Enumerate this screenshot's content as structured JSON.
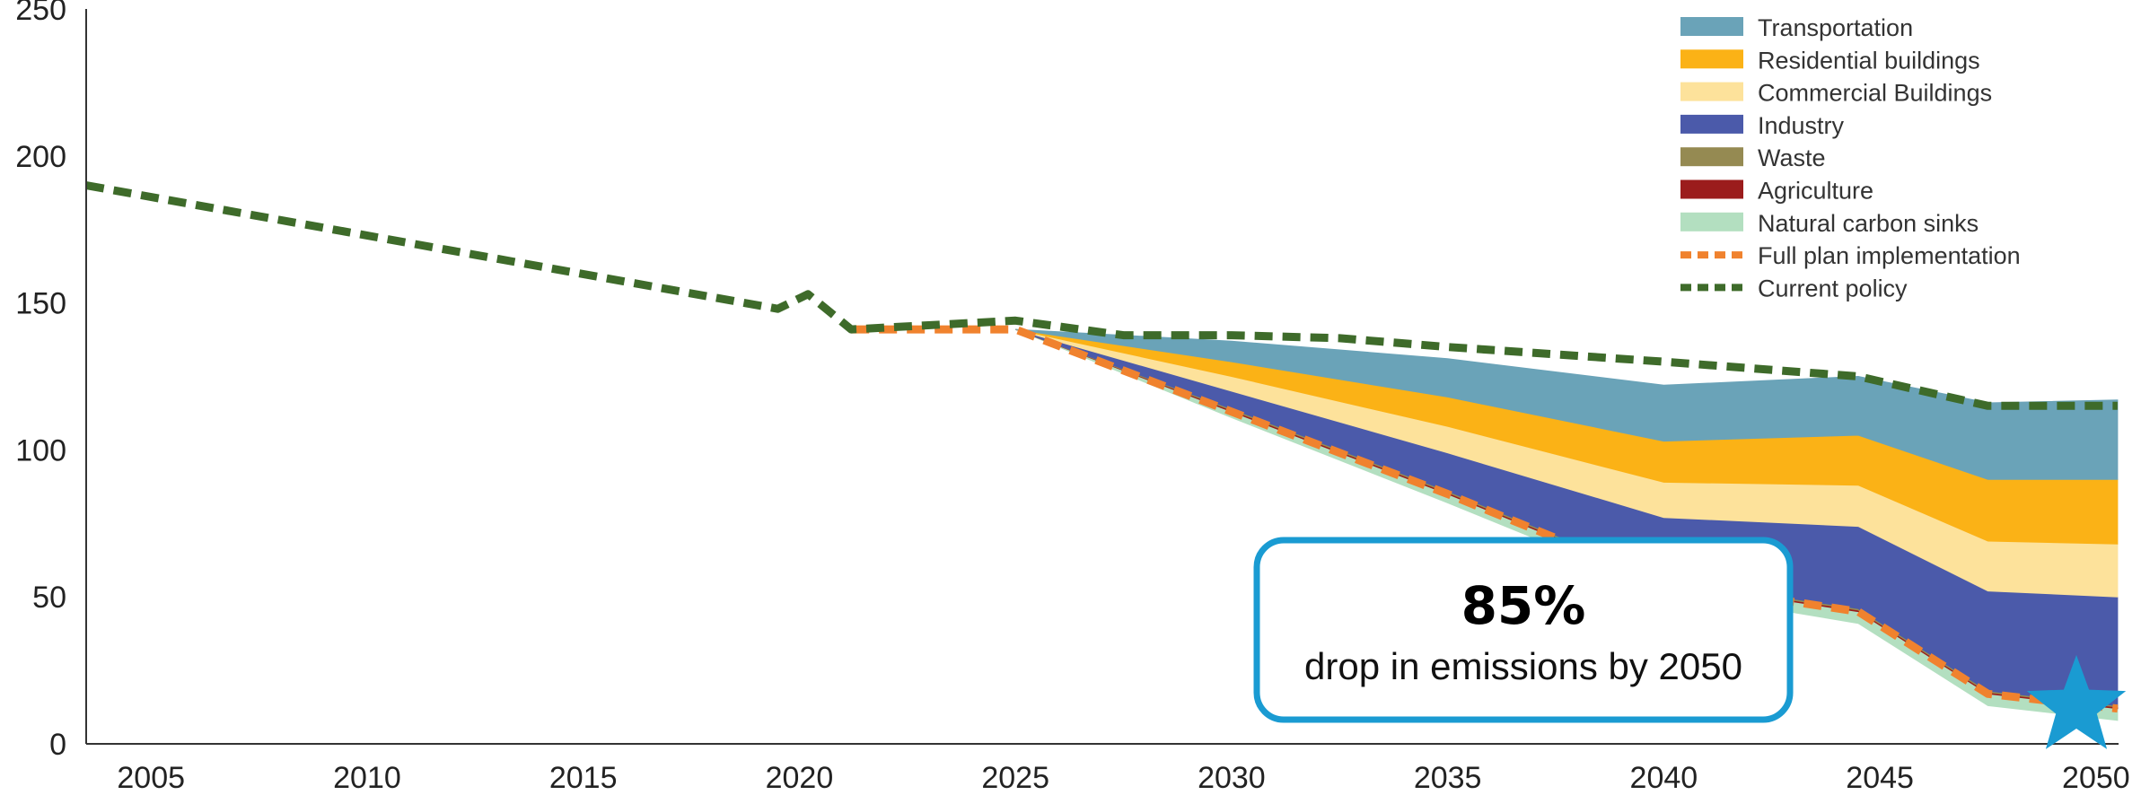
{
  "chart_data": {
    "type": "area",
    "title": "",
    "xlabel": "",
    "ylabel": "",
    "xlim": [
      2003.5,
      2051
    ],
    "ylim": [
      0,
      250
    ],
    "x_ticks": [
      2005,
      2010,
      2015,
      2020,
      2025,
      2030,
      2035,
      2040,
      2045,
      2050
    ],
    "y_ticks": [
      0,
      50,
      100,
      150,
      200,
      250
    ],
    "grid": false,
    "legend_position": "top-right",
    "stack_x": [
      2025,
      2030,
      2035,
      2040,
      2044.5,
      2047.5,
      2050.5
    ],
    "series": [
      {
        "name": "Natural carbon sinks",
        "color": "#b3dfc0",
        "kind": "area",
        "values": [
          0,
          2,
          3,
          3,
          4,
          4,
          4
        ]
      },
      {
        "name": "Agriculture",
        "color": "#9b1c1c",
        "kind": "area",
        "values": [
          0,
          0.5,
          0.5,
          0.5,
          0.5,
          0.5,
          0.5
        ]
      },
      {
        "name": "Waste",
        "color": "#958a52",
        "kind": "area",
        "values": [
          0,
          0.5,
          0.5,
          0.5,
          0.5,
          0.5,
          0.5
        ]
      },
      {
        "name": "Industry",
        "color": "#4b5aaa",
        "kind": "area",
        "values": [
          0,
          6,
          13,
          21,
          28,
          34,
          37
        ]
      },
      {
        "name": "Commercial Buildings",
        "color": "#fde29b",
        "kind": "area",
        "values": [
          0,
          5,
          9,
          12,
          14,
          17,
          18
        ]
      },
      {
        "name": "Residential buildings",
        "color": "#fbb216",
        "kind": "area",
        "values": [
          0,
          5,
          10,
          14,
          17,
          21,
          22
        ]
      },
      {
        "name": "Transportation",
        "color": "#6aa3b8",
        "kind": "area",
        "values": [
          0,
          7,
          13,
          19,
          20,
          26,
          27
        ]
      }
    ],
    "lines": [
      {
        "name": "Full plan implementation",
        "color": "#f0822e",
        "style": "dashed",
        "x": [
          2021.2,
          2025,
          2030,
          2035,
          2040,
          2044.5,
          2047.5,
          2050.5
        ],
        "y": [
          141,
          141,
          113,
          85,
          55,
          45,
          17,
          12
        ]
      },
      {
        "name": "Current policy",
        "color": "#3e6b2a",
        "style": "dashed",
        "x": [
          2003.5,
          2019.5,
          2020.2,
          2021.2,
          2025,
          2027.5,
          2030,
          2032.5,
          2035,
          2040,
          2044.5,
          2047.5,
          2050.5
        ],
        "y": [
          190,
          148,
          153,
          141,
          144,
          139,
          139,
          138,
          135,
          130,
          125,
          115,
          115
        ]
      }
    ],
    "legend": [
      "Transportation",
      "Residential buildings",
      "Commercial Buildings",
      "Industry",
      "Waste",
      "Agriculture",
      "Natural carbon sinks",
      "Full plan implementation",
      "Current policy"
    ],
    "annotation": {
      "percent": "85%",
      "text": "drop in emissions by 2050",
      "border_color": "#1a9bd2",
      "star_color": "#1a9bd2"
    }
  }
}
